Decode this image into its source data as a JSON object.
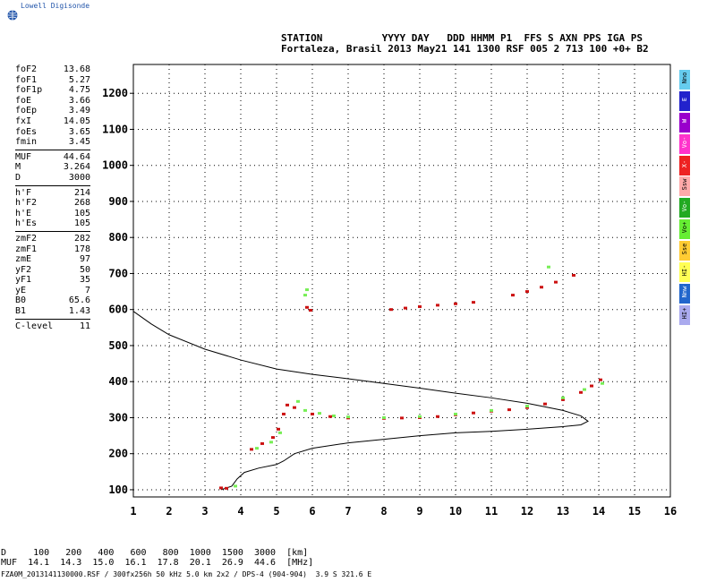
{
  "brand": {
    "name": "Lowell Digisonde"
  },
  "header": {
    "line1": "STATION          YYYY DAY   DDD HHMM P1  FFS S AXN PPS IGA PS",
    "line2": "Fortaleza, Brasil 2013 May21 141 1300 RSF 005 2 713 100 +0+ B2"
  },
  "params": [
    [
      [
        "foF2",
        "13.68"
      ],
      [
        "foF1",
        "5.27"
      ],
      [
        "foF1p",
        "4.75"
      ],
      [
        "foE",
        "3.66"
      ],
      [
        "foEp",
        "3.49"
      ],
      [
        "fxI",
        "14.05"
      ],
      [
        "foEs",
        "3.65"
      ],
      [
        "fmin",
        "3.45"
      ]
    ],
    [
      [
        "MUF",
        "44.64"
      ],
      [
        "M",
        "3.264"
      ],
      [
        "D",
        "3000"
      ]
    ],
    [
      [
        "h'F",
        "214"
      ],
      [
        "h'F2",
        "268"
      ],
      [
        "h'E",
        "105"
      ],
      [
        "h'Es",
        "105"
      ]
    ],
    [
      [
        "zmF2",
        "282"
      ],
      [
        "zmF1",
        "178"
      ],
      [
        "zmE",
        "97"
      ],
      [
        "yF2",
        "50"
      ],
      [
        "yF1",
        "35"
      ],
      [
        "yE",
        "7"
      ],
      [
        "B0",
        "65.6"
      ],
      [
        "B1",
        "1.43"
      ]
    ],
    [
      [
        "C-level",
        "11"
      ]
    ]
  ],
  "legend": [
    {
      "label": "Nno",
      "color": "#66ccee"
    },
    {
      "label": "E",
      "color": "#2222cc"
    },
    {
      "label": "W",
      "color": "#9900cc"
    },
    {
      "label": "Vo-",
      "color": "#ff33cc"
    },
    {
      "label": "X-",
      "color": "#ee2222"
    },
    {
      "label": "Ssw",
      "color": "#ffaaaa"
    },
    {
      "label": "Vo-",
      "color": "#22aa22"
    },
    {
      "label": "Vo+",
      "color": "#66ee33"
    },
    {
      "label": "Sse",
      "color": "#ffcc33"
    },
    {
      "label": "HI-",
      "color": "#ffff55"
    },
    {
      "label": "Nnw",
      "color": "#2266cc"
    },
    {
      "label": "HI+",
      "color": "#aaaaee"
    }
  ],
  "muf_table": {
    "row1": "D     100   200   400   600   800  1000  1500  3000  [km]",
    "row2": "MUF  14.1  14.3  15.0  16.1  17.8  20.1  26.9  44.6  [MHz]"
  },
  "footer": "FZA0M_2013141130000.RSF / 300fx256h 50 kHz 5.0 km 2x2 / DPS-4 (904-904)  3.9 S 321.6 E",
  "chart_data": {
    "type": "scatter",
    "xlim": [
      1,
      16
    ],
    "ylim": [
      80,
      1280
    ],
    "x_ticks": [
      1,
      2,
      3,
      4,
      5,
      6,
      7,
      8,
      9,
      10,
      11,
      12,
      13,
      14,
      15,
      16
    ],
    "y_ticks": [
      100,
      200,
      300,
      400,
      500,
      600,
      700,
      800,
      900,
      1000,
      1100,
      1200
    ],
    "grid": "dotted",
    "series": [
      {
        "color": "#000000",
        "style": "line",
        "points": [
          [
            1,
            595
          ],
          [
            1.5,
            560
          ],
          [
            2,
            530
          ],
          [
            3,
            490
          ],
          [
            4,
            460
          ],
          [
            5,
            435
          ],
          [
            6,
            420
          ],
          [
            7,
            408
          ],
          [
            8,
            395
          ],
          [
            9,
            382
          ],
          [
            10,
            368
          ],
          [
            11,
            355
          ],
          [
            12,
            340
          ],
          [
            13,
            320
          ],
          [
            13.5,
            305
          ],
          [
            13.7,
            290
          ],
          [
            13.5,
            280
          ],
          [
            13,
            275
          ],
          [
            12,
            268
          ],
          [
            11,
            262
          ],
          [
            10,
            258
          ],
          [
            9,
            250
          ],
          [
            8,
            240
          ],
          [
            7,
            230
          ],
          [
            6,
            215
          ],
          [
            5.5,
            200
          ],
          [
            5.2,
            180
          ],
          [
            5,
            170
          ],
          [
            4.5,
            160
          ],
          [
            4.1,
            148
          ],
          [
            3.9,
            130
          ],
          [
            3.75,
            110
          ],
          [
            3.45,
            100
          ]
        ]
      },
      {
        "color": "#cc1111",
        "style": "marks",
        "points": [
          [
            3.45,
            105
          ],
          [
            3.6,
            104
          ],
          [
            4.3,
            212
          ],
          [
            4.6,
            228
          ],
          [
            4.9,
            245
          ],
          [
            5.05,
            268
          ],
          [
            5.2,
            310
          ],
          [
            5.3,
            335
          ],
          [
            5.5,
            328
          ],
          [
            6,
            310
          ],
          [
            6.5,
            303
          ],
          [
            7,
            299
          ],
          [
            8,
            298
          ],
          [
            8.5,
            299
          ],
          [
            9,
            300
          ],
          [
            9.5,
            303
          ],
          [
            10,
            308
          ],
          [
            10.5,
            313
          ],
          [
            11,
            318
          ],
          [
            11.5,
            322
          ],
          [
            12,
            328
          ],
          [
            12.5,
            338
          ],
          [
            13,
            350
          ],
          [
            13.5,
            370
          ],
          [
            13.8,
            388
          ],
          [
            14.05,
            405
          ],
          [
            5.85,
            606
          ],
          [
            5.95,
            598
          ],
          [
            8.2,
            600
          ],
          [
            8.6,
            604
          ],
          [
            9,
            608
          ],
          [
            9.5,
            612
          ],
          [
            10,
            616
          ],
          [
            10.5,
            620
          ],
          [
            11.6,
            640
          ],
          [
            12,
            650
          ],
          [
            12.4,
            662
          ],
          [
            12.8,
            676
          ],
          [
            13.3,
            695
          ]
        ]
      },
      {
        "color": "#77ee55",
        "style": "marks",
        "points": [
          [
            3.85,
            110
          ],
          [
            4.45,
            215
          ],
          [
            4.85,
            232
          ],
          [
            5.1,
            258
          ],
          [
            5.6,
            345
          ],
          [
            5.8,
            320
          ],
          [
            6.2,
            312
          ],
          [
            6.6,
            305
          ],
          [
            7,
            302
          ],
          [
            8,
            300
          ],
          [
            9,
            303
          ],
          [
            10,
            310
          ],
          [
            11,
            320
          ],
          [
            12,
            332
          ],
          [
            13,
            355
          ],
          [
            13.6,
            378
          ],
          [
            14.1,
            395
          ],
          [
            5.85,
            655
          ],
          [
            5.8,
            640
          ],
          [
            12.6,
            718
          ]
        ]
      }
    ]
  }
}
